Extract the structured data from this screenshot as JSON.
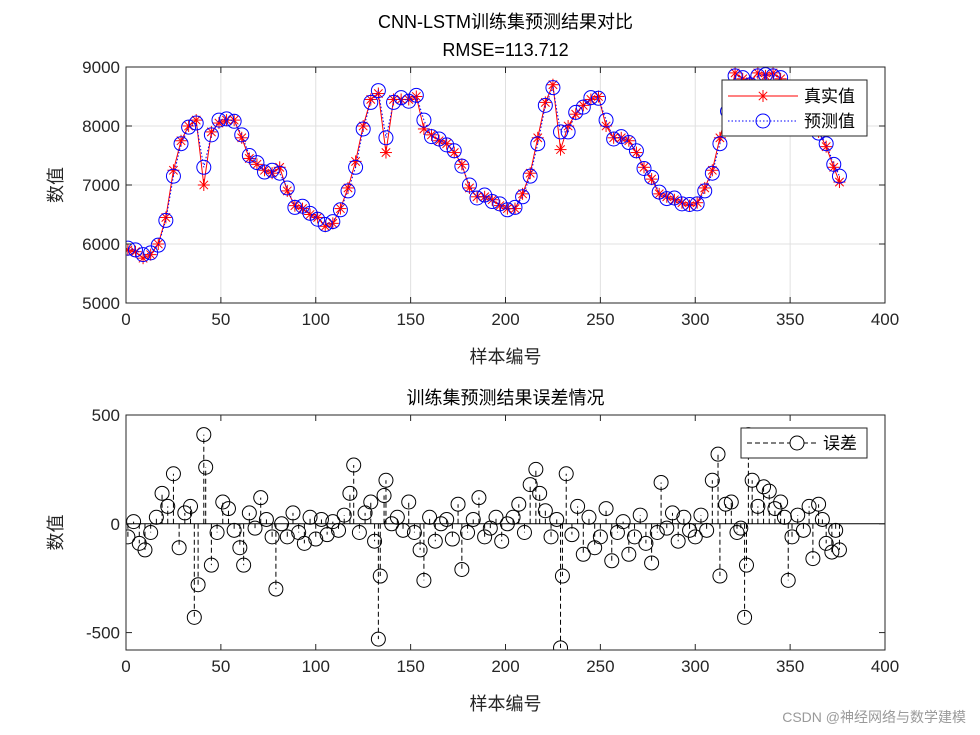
{
  "chart_data": [
    {
      "type": "line",
      "title": "CNN-LSTM训练集预测结果对比",
      "subtitle": "RMSE=113.712",
      "xlabel": "样本编号",
      "ylabel": "数值",
      "xlim": [
        0,
        400
      ],
      "ylim": [
        5000,
        9000
      ],
      "xticks": [
        0,
        50,
        100,
        150,
        200,
        250,
        300,
        350,
        400
      ],
      "yticks": [
        5000,
        6000,
        7000,
        8000,
        9000
      ],
      "grid": true,
      "legend_position": "top-right",
      "x": [
        1,
        5,
        9,
        13,
        17,
        21,
        25,
        29,
        33,
        37,
        41,
        45,
        49,
        53,
        57,
        61,
        65,
        69,
        73,
        77,
        81,
        85,
        89,
        93,
        97,
        101,
        105,
        109,
        113,
        117,
        121,
        125,
        129,
        133,
        137,
        141,
        145,
        149,
        153,
        157,
        161,
        165,
        169,
        173,
        177,
        181,
        185,
        189,
        193,
        197,
        201,
        205,
        209,
        213,
        217,
        221,
        225,
        229,
        233,
        237,
        241,
        245,
        249,
        253,
        257,
        261,
        265,
        269,
        273,
        277,
        281,
        285,
        289,
        293,
        297,
        301,
        305,
        309,
        313,
        317,
        321,
        325,
        329,
        333,
        337,
        341,
        345,
        349,
        353,
        357,
        361,
        365,
        369,
        373,
        376
      ],
      "series": [
        {
          "name": "真实值",
          "color": "#ff0000",
          "marker": "asterisk",
          "line": "solid",
          "values": [
            5900,
            5870,
            5760,
            5820,
            6000,
            6450,
            7250,
            7750,
            8000,
            8100,
            7000,
            7900,
            8050,
            8100,
            8100,
            7800,
            7450,
            7350,
            7250,
            7200,
            7300,
            6900,
            6650,
            6600,
            6500,
            6450,
            6300,
            6350,
            6600,
            6950,
            7400,
            8000,
            8450,
            8550,
            7550,
            8450,
            8450,
            8450,
            8500,
            7950,
            7850,
            7750,
            7700,
            7550,
            7350,
            6950,
            6800,
            6800,
            6750,
            6650,
            6600,
            6600,
            6850,
            7200,
            7800,
            8400,
            8700,
            7600,
            8000,
            8200,
            8350,
            8450,
            8500,
            8000,
            7800,
            7800,
            7750,
            7550,
            7300,
            7100,
            6850,
            6800,
            6750,
            6700,
            6650,
            6700,
            6950,
            7250,
            7800,
            8300,
            8900,
            8800,
            8750,
            8900,
            8850,
            8900,
            8800,
            8500,
            8200,
            8100,
            8000,
            7900,
            7650,
            7300,
            7050
          ]
        },
        {
          "name": "预测值",
          "color": "#0000ff",
          "marker": "circle",
          "line": "dotted",
          "values": [
            5930,
            5900,
            5820,
            5850,
            5980,
            6400,
            7150,
            7700,
            7980,
            8050,
            7300,
            7850,
            8100,
            8120,
            8080,
            7850,
            7500,
            7380,
            7220,
            7250,
            7200,
            6950,
            6620,
            6640,
            6520,
            6420,
            6330,
            6380,
            6580,
            6900,
            7300,
            7950,
            8400,
            8600,
            7800,
            8400,
            8480,
            8420,
            8520,
            8100,
            7820,
            7780,
            7680,
            7580,
            7320,
            7000,
            6780,
            6830,
            6720,
            6680,
            6580,
            6620,
            6800,
            7150,
            7700,
            8350,
            8650,
            7900,
            7900,
            8230,
            8320,
            8480,
            8470,
            8100,
            7780,
            7820,
            7720,
            7580,
            7280,
            7130,
            6880,
            6770,
            6780,
            6680,
            6670,
            6680,
            6900,
            7200,
            7700,
            8250,
            8850,
            8820,
            8700,
            8850,
            8870,
            8850,
            8820,
            8550,
            8250,
            8080,
            8020,
            7880,
            7700,
            7350,
            7150
          ]
        }
      ]
    },
    {
      "type": "stem",
      "title": "训练集预测结果误差情况",
      "xlabel": "样本编号",
      "ylabel": "数值",
      "xlim": [
        0,
        400
      ],
      "ylim": [
        -580,
        500
      ],
      "xticks": [
        0,
        50,
        100,
        150,
        200,
        250,
        300,
        350,
        400
      ],
      "yticks": [
        -500,
        0,
        500
      ],
      "grid": false,
      "legend_position": "top-right",
      "x": [
        1,
        4,
        7,
        10,
        13,
        16,
        19,
        22,
        25,
        28,
        31,
        34,
        36,
        38,
        41,
        42,
        45,
        48,
        51,
        54,
        57,
        60,
        62,
        65,
        68,
        71,
        74,
        77,
        79,
        82,
        85,
        88,
        91,
        94,
        97,
        100,
        103,
        106,
        109,
        112,
        115,
        118,
        120,
        123,
        126,
        129,
        131,
        133,
        134,
        136,
        137,
        140,
        143,
        146,
        149,
        152,
        155,
        157,
        160,
        163,
        166,
        169,
        172,
        175,
        177,
        180,
        183,
        186,
        189,
        192,
        195,
        198,
        201,
        204,
        207,
        210,
        213,
        216,
        218,
        221,
        224,
        227,
        229,
        230,
        232,
        235,
        238,
        241,
        244,
        247,
        250,
        253,
        256,
        259,
        262,
        265,
        268,
        271,
        274,
        277,
        280,
        282,
        285,
        288,
        291,
        294,
        297,
        300,
        303,
        306,
        309,
        312,
        313,
        316,
        319,
        322,
        324,
        326,
        327,
        328,
        330,
        333,
        336,
        339,
        342,
        345,
        347,
        349,
        351,
        354,
        357,
        360,
        362,
        365,
        367,
        369,
        372,
        374,
        376
      ],
      "series": [
        {
          "name": "误差",
          "color": "#000000",
          "marker": "circle",
          "line": "dashed",
          "values": [
            -60,
            10,
            -90,
            -120,
            -40,
            30,
            140,
            80,
            230,
            -110,
            50,
            80,
            -430,
            -280,
            410,
            260,
            -190,
            -40,
            100,
            70,
            -30,
            -110,
            -190,
            50,
            -20,
            120,
            20,
            -60,
            -300,
            0,
            -60,
            50,
            -40,
            -90,
            30,
            -70,
            20,
            -50,
            10,
            -30,
            40,
            140,
            270,
            -40,
            50,
            100,
            -80,
            -530,
            -240,
            130,
            200,
            0,
            30,
            -30,
            100,
            -40,
            -120,
            -260,
            30,
            -80,
            0,
            20,
            -70,
            90,
            -210,
            -40,
            20,
            120,
            -60,
            -20,
            30,
            -80,
            0,
            30,
            90,
            -40,
            180,
            250,
            140,
            60,
            -60,
            20,
            -570,
            -240,
            230,
            -50,
            80,
            -140,
            30,
            -110,
            -60,
            70,
            -170,
            -40,
            10,
            -140,
            -60,
            40,
            -90,
            -180,
            -40,
            190,
            -20,
            50,
            -80,
            30,
            -30,
            -60,
            40,
            -30,
            200,
            320,
            -240,
            90,
            100,
            -40,
            -20,
            -430,
            -190,
            410,
            200,
            80,
            170,
            150,
            70,
            100,
            30,
            -260,
            -60,
            40,
            -30,
            80,
            -160,
            90,
            20,
            -90,
            -130,
            -30,
            -120
          ]
        }
      ]
    }
  ],
  "watermark": "CSDN @神经网络与数学建模"
}
